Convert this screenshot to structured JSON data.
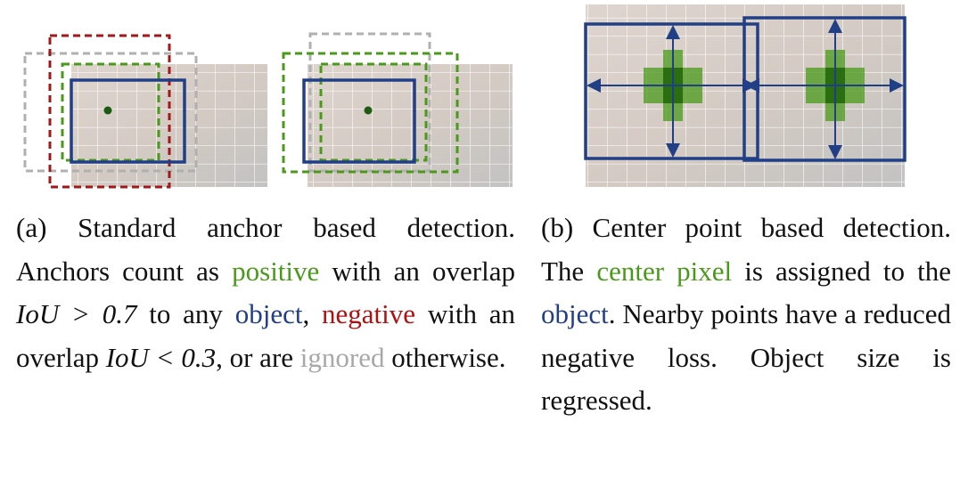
{
  "caption_a": [
    "(a) Standard anchor based detection. Anchors count as ",
    "positive",
    " with an overlap ",
    "IoU > 0.7",
    " to any ",
    "object",
    ", ",
    "negative",
    " with an overlap ",
    "IoU < 0.3",
    ", or are ",
    "ignored",
    " otherwise."
  ],
  "caption_b": [
    "(b) Center point based detection. The ",
    "center pixel",
    " is assigned to the ",
    "object",
    ". Nearby points have a reduced negative loss. Object size is regressed."
  ]
}
